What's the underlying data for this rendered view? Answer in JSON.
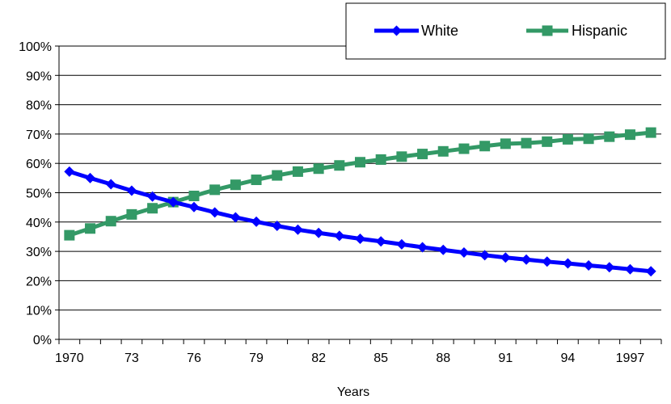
{
  "chart_data": {
    "type": "line",
    "x": [
      1970,
      1971,
      1972,
      1973,
      1974,
      1975,
      1976,
      1977,
      1978,
      1979,
      1980,
      1981,
      1982,
      1983,
      1984,
      1985,
      1986,
      1987,
      1988,
      1989,
      1990,
      1991,
      1992,
      1993,
      1994,
      1995,
      1996,
      1997,
      1998
    ],
    "x_tick_labels": [
      "1970",
      "73",
      "76",
      "79",
      "82",
      "85",
      "88",
      "91",
      "94",
      "1997"
    ],
    "x_tick_values": [
      1970,
      1973,
      1976,
      1979,
      1982,
      1985,
      1988,
      1991,
      1994,
      1997
    ],
    "xlabel": "Years",
    "ylabel": "",
    "ylim": [
      0,
      100
    ],
    "y_tick_labels": [
      "0%",
      "10%",
      "20%",
      "30%",
      "40%",
      "50%",
      "60%",
      "70%",
      "80%",
      "90%",
      "100%"
    ],
    "grid": true,
    "legend_position": "top-right",
    "series": [
      {
        "name": "White",
        "color": "#0000ff",
        "marker": "diamond",
        "values": [
          57.2,
          55.0,
          52.9,
          50.7,
          48.7,
          46.8,
          45.1,
          43.3,
          41.6,
          40.1,
          38.7,
          37.4,
          36.3,
          35.3,
          34.3,
          33.4,
          32.4,
          31.4,
          30.5,
          29.6,
          28.7,
          27.9,
          27.2,
          26.5,
          25.9,
          25.2,
          24.6,
          23.9,
          23.2
        ]
      },
      {
        "name": "Hispanic",
        "color": "#339966",
        "marker": "square",
        "values": [
          35.5,
          37.8,
          40.3,
          42.6,
          44.7,
          46.8,
          48.9,
          51.0,
          52.7,
          54.4,
          55.9,
          57.2,
          58.2,
          59.3,
          60.4,
          61.3,
          62.3,
          63.2,
          64.1,
          65.0,
          65.9,
          66.7,
          66.9,
          67.4,
          68.2,
          68.4,
          69.1,
          69.8,
          70.5
        ]
      }
    ]
  }
}
